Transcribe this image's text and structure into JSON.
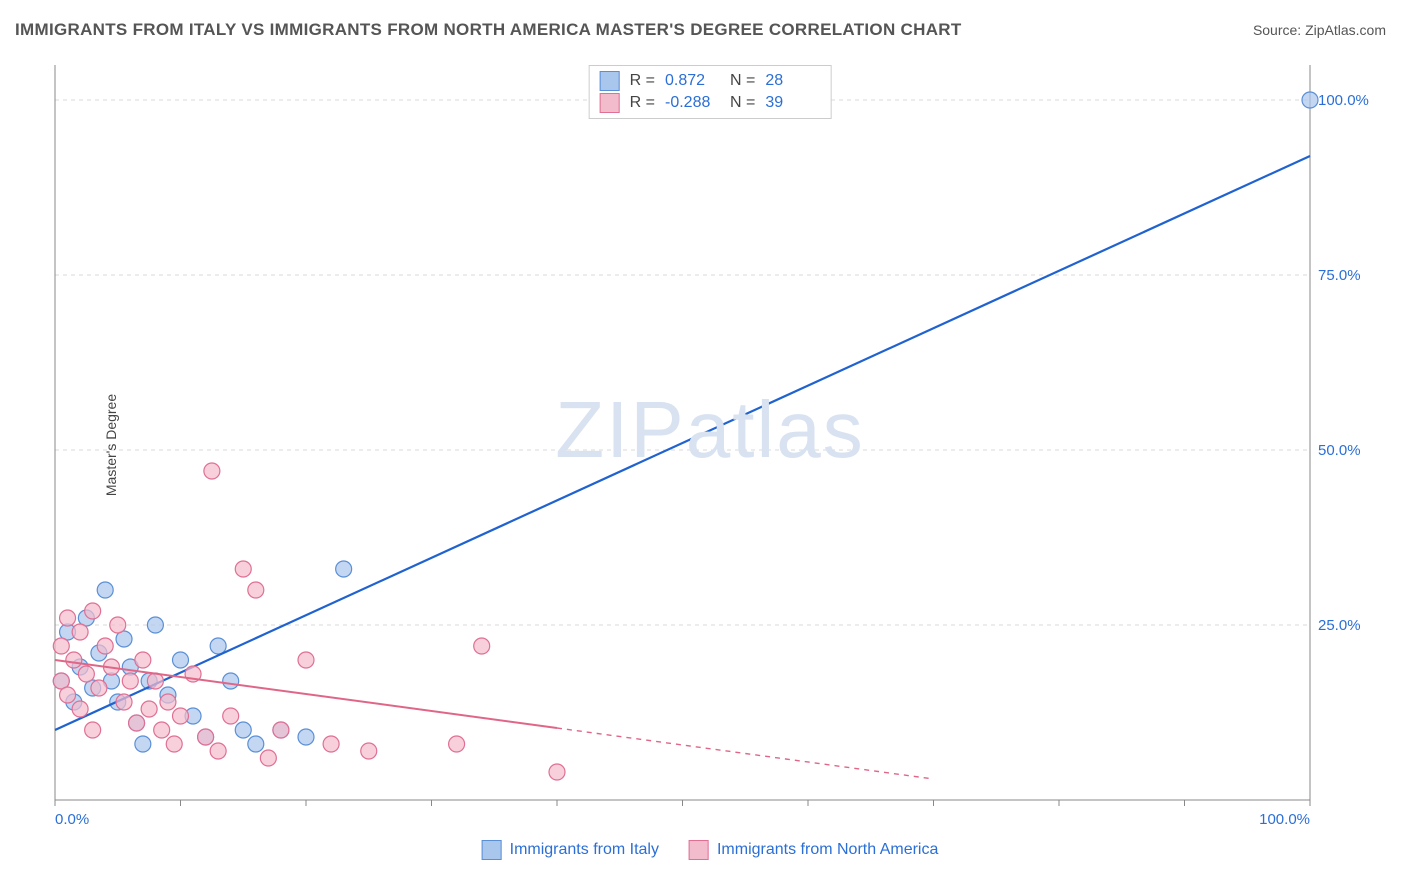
{
  "title": "IMMIGRANTS FROM ITALY VS IMMIGRANTS FROM NORTH AMERICA MASTER'S DEGREE CORRELATION CHART",
  "source": "Source: ZipAtlas.com",
  "watermark": "ZIPatlas",
  "ylabel": "Master's Degree",
  "chart": {
    "type": "scatter",
    "xlim": [
      0,
      100
    ],
    "ylim": [
      0,
      105
    ],
    "xticks": [
      0,
      10,
      20,
      30,
      40,
      50,
      60,
      70,
      80,
      90,
      100
    ],
    "yticks": [
      25,
      50,
      75,
      100
    ],
    "xlabels": {
      "0": "0.0%",
      "100": "100.0%"
    },
    "ylabels": {
      "25": "25.0%",
      "50": "50.0%",
      "75": "75.0%",
      "100": "100.0%"
    },
    "grid_color": "#d9d9d9",
    "grid_dash": "4,4",
    "background_color": "#ffffff",
    "axis_color": "#888888",
    "label_color": "#2b6fd6",
    "series": [
      {
        "name": "Immigrants from Italy",
        "marker_fill": "#a9c6ec",
        "marker_stroke": "#5a8fd6",
        "marker_opacity": 0.7,
        "marker_radius": 8,
        "line_color": "#1f62d0",
        "line_width": 2.2,
        "R": 0.872,
        "N": 28,
        "trend": {
          "x1": 0,
          "y1": 10,
          "x2": 100,
          "y2": 92,
          "extrapolate_from": 100
        },
        "points": [
          [
            0.5,
            17
          ],
          [
            1,
            24
          ],
          [
            1.5,
            14
          ],
          [
            2,
            19
          ],
          [
            2.5,
            26
          ],
          [
            3,
            16
          ],
          [
            3.5,
            21
          ],
          [
            4,
            30
          ],
          [
            4.5,
            17
          ],
          [
            5,
            14
          ],
          [
            5.5,
            23
          ],
          [
            6,
            19
          ],
          [
            6.5,
            11
          ],
          [
            7,
            8
          ],
          [
            7.5,
            17
          ],
          [
            8,
            25
          ],
          [
            9,
            15
          ],
          [
            10,
            20
          ],
          [
            11,
            12
          ],
          [
            12,
            9
          ],
          [
            13,
            22
          ],
          [
            14,
            17
          ],
          [
            15,
            10
          ],
          [
            16,
            8
          ],
          [
            18,
            10
          ],
          [
            20,
            9
          ],
          [
            23,
            33
          ],
          [
            100,
            100
          ]
        ]
      },
      {
        "name": "Immigrants from North America",
        "marker_fill": "#f3bccd",
        "marker_stroke": "#e06f93",
        "marker_opacity": 0.7,
        "marker_radius": 8,
        "line_color": "#e06688",
        "line_width": 2,
        "R": -0.288,
        "N": 39,
        "trend": {
          "x1": 0,
          "y1": 20,
          "x2": 70,
          "y2": 3,
          "extrapolate_from": 40
        },
        "points": [
          [
            0.5,
            22
          ],
          [
            0.5,
            17
          ],
          [
            1,
            26
          ],
          [
            1,
            15
          ],
          [
            1.5,
            20
          ],
          [
            2,
            24
          ],
          [
            2,
            13
          ],
          [
            2.5,
            18
          ],
          [
            3,
            27
          ],
          [
            3,
            10
          ],
          [
            3.5,
            16
          ],
          [
            4,
            22
          ],
          [
            4.5,
            19
          ],
          [
            5,
            25
          ],
          [
            5.5,
            14
          ],
          [
            6,
            17
          ],
          [
            6.5,
            11
          ],
          [
            7,
            20
          ],
          [
            7.5,
            13
          ],
          [
            8,
            17
          ],
          [
            8.5,
            10
          ],
          [
            9,
            14
          ],
          [
            9.5,
            8
          ],
          [
            10,
            12
          ],
          [
            11,
            18
          ],
          [
            12,
            9
          ],
          [
            12.5,
            47
          ],
          [
            13,
            7
          ],
          [
            14,
            12
          ],
          [
            15,
            33
          ],
          [
            16,
            30
          ],
          [
            17,
            6
          ],
          [
            18,
            10
          ],
          [
            20,
            20
          ],
          [
            22,
            8
          ],
          [
            25,
            7
          ],
          [
            32,
            8
          ],
          [
            34,
            22
          ],
          [
            40,
            4
          ]
        ]
      }
    ]
  },
  "legend_top": [
    {
      "swatch_fill": "#a9c6ec",
      "swatch_stroke": "#5a8fd6",
      "R_label": "R =",
      "R": "0.872",
      "N_label": "N =",
      "N": "28"
    },
    {
      "swatch_fill": "#f3bccd",
      "swatch_stroke": "#e06f93",
      "R_label": "R =",
      "R": "-0.288",
      "N_label": "N =",
      "N": "39"
    }
  ],
  "legend_bottom": [
    {
      "swatch_fill": "#a9c6ec",
      "swatch_stroke": "#5a8fd6",
      "label": "Immigrants from Italy"
    },
    {
      "swatch_fill": "#f3bccd",
      "swatch_stroke": "#e06f93",
      "label": "Immigrants from North America"
    }
  ]
}
